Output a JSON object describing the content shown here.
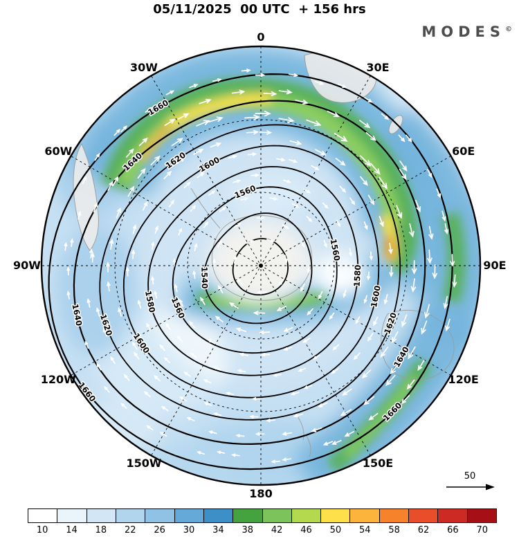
{
  "header": {
    "title": "05/11/2025  00 UTC  + 156 hrs",
    "brand": "MODES",
    "brand_mark": "©"
  },
  "map": {
    "longitude_labels": [
      "0",
      "30E",
      "60E",
      "90E",
      "120E",
      "150E",
      "180",
      "150W",
      "120W",
      "90W",
      "60W",
      "30W"
    ],
    "reference_vector_label": "50"
  },
  "colorbar": {
    "tick_labels": [
      "10",
      "14",
      "18",
      "22",
      "26",
      "30",
      "34",
      "38",
      "42",
      "46",
      "50",
      "54",
      "58",
      "62",
      "66",
      "70"
    ],
    "colors": [
      "#ffffff",
      "#eaf4fb",
      "#d2e6f5",
      "#b2d5ee",
      "#8fc2e4",
      "#64a9d8",
      "#3d8fc8",
      "#45a33f",
      "#7dc35c",
      "#b5d94e",
      "#fee04b",
      "#fdb43c",
      "#f6822c",
      "#e84e29",
      "#cc2a23",
      "#a50f15"
    ]
  },
  "chart_data": {
    "type": "heatmap",
    "title": "05/11/2025 00 UTC + 156 hrs",
    "projection": "south polar stereographic, 0 longitude at top, meridians every 30 degrees",
    "shaded_field": {
      "name": "wind speed",
      "levels": [
        10,
        14,
        18,
        22,
        26,
        30,
        34,
        38,
        42,
        46,
        50,
        54,
        58,
        62,
        66,
        70
      ],
      "palette": [
        "#ffffff",
        "#eaf4fb",
        "#d2e6f5",
        "#b2d5ee",
        "#8fc2e4",
        "#64a9d8",
        "#3d8fc8",
        "#45a33f",
        "#7dc35c",
        "#b5d94e",
        "#fee04b",
        "#fdb43c",
        "#f6822c",
        "#e84e29",
        "#cc2a23",
        "#a50f15"
      ]
    },
    "contour_field": {
      "name": "geopotential height",
      "levels": [
        1540,
        1560,
        1580,
        1600,
        1620,
        1640,
        1660
      ],
      "interval": 20,
      "minimum_closed_center": "unlabeled low center near the pole inside the 1540 contour"
    },
    "vector_field": {
      "name": "wind vectors",
      "arrow_color": "white",
      "reference_value": 50,
      "flow_direction": "clockwise (westerly) around the polar low"
    },
    "graticule": {
      "meridian_spacing_deg": 30,
      "dashed": true,
      "meridian_labels": [
        "0",
        "30E",
        "60E",
        "90E",
        "120E",
        "150E",
        "180",
        "150W",
        "120W",
        "90W",
        "60W",
        "30W"
      ]
    },
    "features": [
      "circumpolar low centered near the pole enclosed by the 1540 contour",
      "strong jet band (40-58) arcing from 60W across 0 and 30E toward 90E, with yellow-orange maxima near 30W/60W and near 90E",
      "secondary jet streak just south of the pole along the tight 1560-1580 gradient",
      "jet streak from 180/150E toward 120E along the 1640-1660 contours",
      "calm areas (<14) over the polar interior, in the 120W-90W sector and near 30E-60E mid-latitudes"
    ]
  }
}
